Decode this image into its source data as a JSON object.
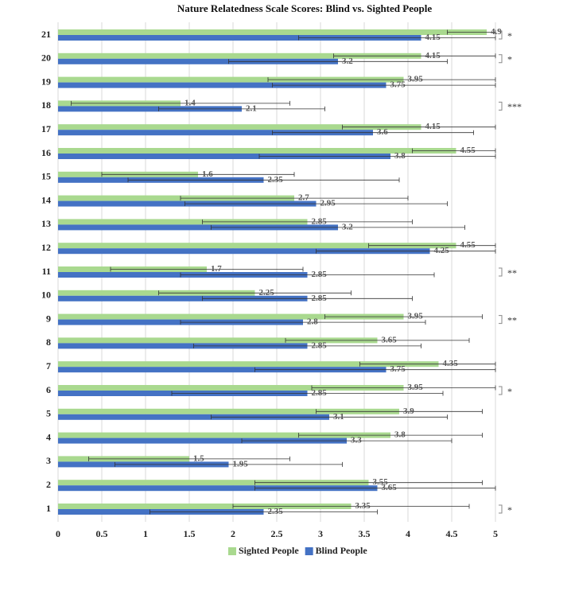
{
  "chart_data": {
    "type": "barh",
    "title": "Nature Relatedness Scale Scores: Blind vs. Sighted People",
    "categories": [
      "1",
      "2",
      "3",
      "4",
      "5",
      "6",
      "7",
      "8",
      "9",
      "10",
      "11",
      "12",
      "13",
      "14",
      "15",
      "16",
      "17",
      "18",
      "19",
      "20",
      "21"
    ],
    "series": [
      {
        "name": "Sighted People",
        "color": "#a9d98f",
        "values": [
          3.35,
          3.55,
          1.5,
          3.8,
          3.9,
          3.95,
          4.35,
          3.65,
          3.95,
          2.25,
          1.7,
          4.55,
          2.85,
          2.7,
          1.6,
          4.55,
          4.15,
          1.4,
          3.95,
          4.15,
          4.9
        ],
        "errors": [
          1.35,
          1.3,
          1.15,
          1.05,
          0.95,
          1.05,
          0.9,
          1.05,
          0.9,
          1.1,
          1.1,
          1.0,
          1.2,
          1.3,
          1.1,
          0.5,
          0.9,
          1.25,
          1.55,
          1.0,
          0.45
        ]
      },
      {
        "name": "Blind People",
        "color": "#4472c4",
        "values": [
          2.35,
          3.65,
          1.95,
          3.3,
          3.1,
          2.85,
          3.75,
          2.85,
          2.8,
          2.85,
          2.85,
          4.25,
          3.2,
          2.95,
          2.35,
          3.8,
          3.6,
          2.1,
          3.75,
          3.2,
          4.15
        ],
        "errors": [
          1.3,
          1.4,
          1.3,
          1.2,
          1.35,
          1.55,
          1.5,
          1.3,
          1.4,
          1.2,
          1.45,
          1.3,
          1.45,
          1.5,
          1.55,
          1.5,
          1.15,
          0.95,
          1.3,
          1.25,
          1.4
        ]
      }
    ],
    "xlim": [
      0,
      5
    ],
    "xticks": [
      0,
      0.5,
      1,
      1.5,
      2,
      2.5,
      3,
      3.5,
      4,
      4.5,
      5
    ],
    "grid": true,
    "legend": "bottom",
    "annotations": [
      {
        "category": "21",
        "label": "*"
      },
      {
        "category": "20",
        "label": "*"
      },
      {
        "category": "18",
        "label": "***"
      },
      {
        "category": "11",
        "label": "**"
      },
      {
        "category": "9",
        "label": "**"
      },
      {
        "category": "6",
        "label": "*"
      },
      {
        "category": "1",
        "label": "*"
      }
    ]
  }
}
